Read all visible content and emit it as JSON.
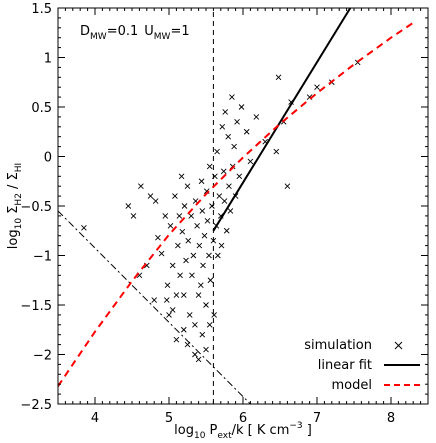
{
  "chart_data": {
    "type": "scatter",
    "annotation": {
      "d_main": "D",
      "d_sub": "MW",
      "d_val": "=0.1",
      "u_main": "U",
      "u_sub": "MW",
      "u_val": "=1"
    },
    "xlabel": {
      "pre": "log",
      "pre_sub": "10",
      "main": " P",
      "main_sub": "ext",
      "post": "/k [ K cm",
      "exp": "−3",
      "end": " ]"
    },
    "ylabel": {
      "pre": "log",
      "pre_sub": "10",
      "sigma1": " Σ",
      "sub1": "H2",
      "sep": " / Σ",
      "sub2": "HI"
    },
    "xlim": [
      3.5,
      8.5
    ],
    "ylim": [
      -2.5,
      1.5
    ],
    "xticks": [
      4,
      5,
      6,
      7,
      8
    ],
    "yticks": [
      -2.5,
      -2,
      -1.5,
      -1,
      -0.5,
      0,
      0.5,
      1,
      1.5
    ],
    "ytick_labels": [
      "−2.5",
      "−2",
      "−1.5",
      "−1",
      "−0.5",
      "0",
      "0.5",
      "1",
      "1.5"
    ],
    "legend_position": "bottom-right",
    "series": [
      {
        "name": "simulation",
        "kind": "scatter",
        "marker": "x",
        "color": "#000000",
        "points": [
          [
            3.85,
            -0.72
          ],
          [
            4.45,
            -0.5
          ],
          [
            4.52,
            -0.6
          ],
          [
            4.62,
            -0.3
          ],
          [
            4.75,
            -0.4
          ],
          [
            4.7,
            -1.1
          ],
          [
            4.82,
            -0.45
          ],
          [
            4.85,
            -0.82
          ],
          [
            4.9,
            -0.98
          ],
          [
            4.95,
            -0.6
          ],
          [
            4.97,
            -1.45
          ],
          [
            4.98,
            -1.3
          ],
          [
            5.02,
            -0.7
          ],
          [
            5.05,
            -1.1
          ],
          [
            5.08,
            -0.4
          ],
          [
            5.1,
            -1.4
          ],
          [
            5.12,
            -0.9
          ],
          [
            5.14,
            -0.6
          ],
          [
            5.15,
            -1.2
          ],
          [
            5.17,
            -0.2
          ],
          [
            5.18,
            -0.76
          ],
          [
            5.2,
            -1.4
          ],
          [
            5.21,
            -0.5
          ],
          [
            5.23,
            -1.05
          ],
          [
            5.25,
            -0.3
          ],
          [
            5.26,
            -0.85
          ],
          [
            5.28,
            -1.6
          ],
          [
            5.3,
            -0.6
          ],
          [
            5.31,
            -1.2
          ],
          [
            5.33,
            -1.0
          ],
          [
            5.35,
            -1.7
          ],
          [
            5.36,
            -0.45
          ],
          [
            5.38,
            -0.7
          ],
          [
            5.4,
            -1.4
          ],
          [
            5.41,
            -0.9
          ],
          [
            5.43,
            -1.3
          ],
          [
            5.44,
            -0.25
          ],
          [
            5.45,
            -0.55
          ],
          [
            5.46,
            -1.1
          ],
          [
            5.48,
            -0.8
          ],
          [
            5.5,
            -1.5
          ],
          [
            5.51,
            -0.35
          ],
          [
            5.52,
            -0.65
          ],
          [
            5.54,
            -1.0
          ],
          [
            5.55,
            -0.1
          ],
          [
            5.56,
            -1.25
          ],
          [
            5.58,
            -0.5
          ],
          [
            5.6,
            -0.85
          ],
          [
            5.61,
            -1.6
          ],
          [
            5.62,
            -0.2
          ],
          [
            5.64,
            -0.7
          ],
          [
            5.65,
            0.05
          ],
          [
            5.66,
            -1.0
          ],
          [
            5.68,
            -0.4
          ],
          [
            5.7,
            -0.6
          ],
          [
            5.71,
            -0.9
          ],
          [
            5.72,
            0.3
          ],
          [
            5.74,
            -0.15
          ],
          [
            5.75,
            -0.45
          ],
          [
            5.76,
            0.45
          ],
          [
            5.78,
            -0.75
          ],
          [
            5.8,
            0.2
          ],
          [
            5.81,
            -0.3
          ],
          [
            5.83,
            -0.55
          ],
          [
            5.85,
            0.6
          ],
          [
            5.86,
            -0.1
          ],
          [
            5.88,
            0.1
          ],
          [
            5.9,
            -0.4
          ],
          [
            5.92,
            0.35
          ],
          [
            5.95,
            -0.2
          ],
          [
            5.98,
            0.5
          ],
          [
            6.05,
            0.25
          ],
          [
            6.1,
            -0.05
          ],
          [
            6.18,
            0.4
          ],
          [
            6.3,
            0.15
          ],
          [
            6.45,
            0.05
          ],
          [
            6.6,
            -0.3
          ],
          [
            6.55,
            0.35
          ],
          [
            6.65,
            0.55
          ],
          [
            6.9,
            0.6
          ],
          [
            7.0,
            0.7
          ],
          [
            7.2,
            0.75
          ],
          [
            7.55,
            0.95
          ],
          [
            6.48,
            0.8
          ],
          [
            5.0,
            -1.6
          ],
          [
            5.1,
            -1.85
          ],
          [
            5.25,
            -1.9
          ],
          [
            5.4,
            -2.05
          ],
          [
            5.5,
            -1.95
          ],
          [
            5.35,
            -2.0
          ],
          [
            5.2,
            -1.75
          ],
          [
            4.8,
            -1.45
          ],
          [
            4.6,
            -1.2
          ],
          [
            5.45,
            -1.8
          ],
          [
            5.55,
            -1.7
          ],
          [
            5.05,
            -1.55
          ]
        ]
      },
      {
        "name": "linear fit",
        "kind": "line",
        "color": "#000000",
        "style": "solid",
        "x": [
          5.6,
          7.45
        ],
        "y": [
          -0.75,
          1.5
        ]
      },
      {
        "name": "model",
        "kind": "line",
        "color": "#ff0000",
        "style": "dashed",
        "x": [
          3.5,
          4.0,
          4.5,
          5.0,
          5.5,
          6.0,
          6.5,
          7.0,
          7.5,
          8.0,
          8.3
        ],
        "y": [
          -2.32,
          -1.77,
          -1.26,
          -0.79,
          -0.38,
          -0.01,
          0.33,
          0.64,
          0.93,
          1.2,
          1.35
        ]
      }
    ],
    "reference_lines": [
      {
        "kind": "vertical",
        "x": 5.6,
        "style": "dashed",
        "color": "#000000"
      },
      {
        "kind": "line",
        "style": "dashdot",
        "color": "#000000",
        "x": [
          3.5,
          6.1
        ],
        "y": [
          -0.55,
          -2.5
        ]
      }
    ]
  }
}
